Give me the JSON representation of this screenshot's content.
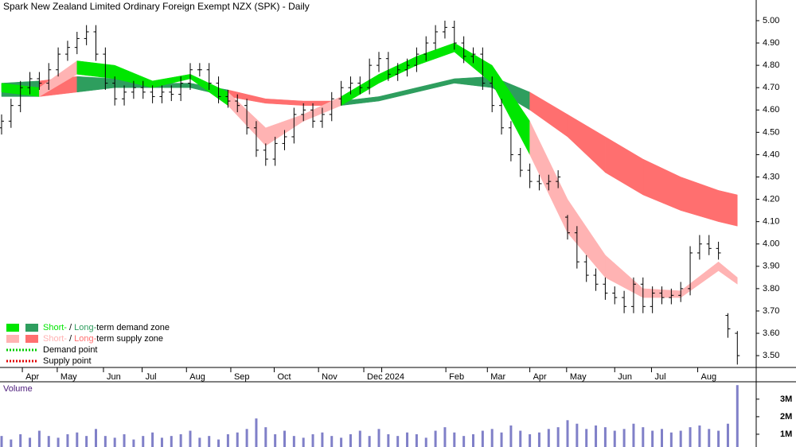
{
  "chart_data": {
    "type": "ohlc",
    "title": "Spark New Zealand Limited Ordinary Foreign Exempt NZX (SPK) - Daily",
    "xlim": [
      0,
      80
    ],
    "xticks": [
      {
        "value": 2.2,
        "label": "Apr"
      },
      {
        "value": 5.9,
        "label": "May"
      },
      {
        "value": 10.8,
        "label": "Jun"
      },
      {
        "value": 14.9,
        "label": "Jul"
      },
      {
        "value": 19.6,
        "label": "Aug"
      },
      {
        "value": 24.3,
        "label": "Sep"
      },
      {
        "value": 28.9,
        "label": "Oct"
      },
      {
        "value": 33.6,
        "label": "Nov"
      },
      {
        "value": 38.4,
        "label": "Dec"
      },
      {
        "value": 40.3,
        "label": "2024"
      },
      {
        "value": 47.1,
        "label": "Feb"
      },
      {
        "value": 51.5,
        "label": "Mar"
      },
      {
        "value": 56,
        "label": "Apr"
      },
      {
        "value": 59.9,
        "label": "May"
      },
      {
        "value": 65,
        "label": "Jun"
      },
      {
        "value": 68.9,
        "label": "Jul"
      },
      {
        "value": 73.8,
        "label": "Aug"
      }
    ],
    "ylim": [
      3.447,
      5.064
    ],
    "yticks": [
      {
        "value": 3.5,
        "label": "3.50"
      },
      {
        "value": 3.6,
        "label": "3.60"
      },
      {
        "value": 3.7,
        "label": "3.70"
      },
      {
        "value": 3.8,
        "label": "3.80"
      },
      {
        "value": 3.9,
        "label": "3.90"
      },
      {
        "value": 4.0,
        "label": "4.00"
      },
      {
        "value": 4.1,
        "label": "4.10"
      },
      {
        "value": 4.2,
        "label": "4.20"
      },
      {
        "value": 4.3,
        "label": "4.30"
      },
      {
        "value": 4.4,
        "label": "4.40"
      },
      {
        "value": 4.5,
        "label": "4.50"
      },
      {
        "value": 4.6,
        "label": "4.60"
      },
      {
        "value": 4.7,
        "label": "4.70"
      },
      {
        "value": 4.8,
        "label": "4.80"
      },
      {
        "value": 4.9,
        "label": "4.90"
      },
      {
        "value": 5.0,
        "label": "5.00"
      }
    ],
    "open": [
      4.52,
      4.55,
      4.62,
      4.7,
      4.74,
      4.72,
      4.78,
      4.85,
      4.88,
      4.92,
      4.95,
      4.85,
      4.72,
      4.65,
      4.68,
      4.7,
      4.68,
      4.66,
      4.68,
      4.67,
      4.72,
      4.78,
      4.78,
      4.72,
      4.66,
      4.64,
      4.62,
      4.52,
      4.42,
      4.38,
      4.45,
      4.48,
      4.58,
      4.6,
      4.55,
      4.58,
      4.65,
      4.7,
      4.72,
      4.7,
      4.8,
      4.83,
      4.76,
      4.78,
      4.8,
      4.85,
      4.9,
      4.95,
      4.97,
      4.9,
      4.84,
      4.85,
      4.72,
      4.62,
      4.52,
      4.4,
      4.33,
      4.28,
      4.27,
      4.28,
      4.12,
      4.05,
      3.92,
      3.86,
      3.82,
      3.78,
      3.76,
      3.72,
      3.82,
      3.72,
      3.78,
      3.76,
      3.77,
      3.8,
      3.96,
      4.0,
      3.98,
      3.68,
      3.6
    ],
    "high": [
      4.58,
      4.65,
      4.73,
      4.77,
      4.77,
      4.81,
      4.88,
      4.91,
      4.95,
      4.98,
      4.98,
      4.88,
      4.75,
      4.71,
      4.73,
      4.73,
      4.71,
      4.71,
      4.71,
      4.75,
      4.81,
      4.81,
      4.81,
      4.75,
      4.69,
      4.67,
      4.65,
      4.55,
      4.45,
      4.48,
      4.51,
      4.61,
      4.63,
      4.63,
      4.61,
      4.68,
      4.73,
      4.75,
      4.75,
      4.83,
      4.86,
      4.86,
      4.81,
      4.83,
      4.88,
      4.93,
      4.98,
      5.0,
      5.0,
      4.93,
      4.88,
      4.88,
      4.75,
      4.65,
      4.55,
      4.43,
      4.36,
      4.31,
      4.31,
      4.33,
      4.13,
      4.08,
      3.95,
      3.89,
      3.85,
      3.81,
      3.79,
      3.85,
      3.85,
      3.81,
      3.81,
      3.8,
      3.83,
      3.99,
      4.04,
      4.04,
      4.01,
      3.69,
      3.61
    ],
    "low": [
      4.49,
      4.52,
      4.59,
      4.67,
      4.69,
      4.69,
      4.75,
      4.82,
      4.85,
      4.89,
      4.82,
      4.69,
      4.62,
      4.62,
      4.65,
      4.65,
      4.63,
      4.63,
      4.64,
      4.64,
      4.69,
      4.75,
      4.69,
      4.63,
      4.61,
      4.59,
      4.49,
      4.39,
      4.35,
      4.35,
      4.42,
      4.45,
      4.55,
      4.52,
      4.52,
      4.55,
      4.62,
      4.67,
      4.67,
      4.67,
      4.77,
      4.73,
      4.73,
      4.75,
      4.77,
      4.82,
      4.87,
      4.92,
      4.87,
      4.81,
      4.81,
      4.69,
      4.59,
      4.49,
      4.37,
      4.3,
      4.25,
      4.24,
      4.24,
      4.25,
      4.02,
      3.89,
      3.83,
      3.79,
      3.75,
      3.73,
      3.69,
      3.69,
      3.69,
      3.69,
      3.73,
      3.73,
      3.74,
      3.77,
      3.93,
      3.95,
      3.93,
      3.58,
      3.46
    ],
    "close": [
      4.55,
      4.62,
      4.7,
      4.74,
      4.72,
      4.78,
      4.85,
      4.88,
      4.92,
      4.95,
      4.85,
      4.72,
      4.65,
      4.68,
      4.7,
      4.68,
      4.66,
      4.68,
      4.67,
      4.72,
      4.78,
      4.78,
      4.72,
      4.66,
      4.64,
      4.62,
      4.52,
      4.42,
      4.38,
      4.45,
      4.48,
      4.58,
      4.6,
      4.55,
      4.58,
      4.65,
      4.7,
      4.72,
      4.7,
      4.8,
      4.83,
      4.76,
      4.78,
      4.8,
      4.85,
      4.9,
      4.95,
      4.97,
      4.9,
      4.84,
      4.85,
      4.72,
      4.62,
      4.52,
      4.4,
      4.33,
      4.28,
      4.27,
      4.28,
      4.3,
      4.05,
      3.92,
      3.86,
      3.82,
      3.78,
      3.76,
      3.72,
      3.82,
      3.72,
      3.78,
      3.76,
      3.77,
      3.8,
      3.96,
      4.0,
      3.98,
      3.96,
      3.62,
      3.5
    ],
    "zones": {
      "x": [
        0,
        4,
        8,
        12,
        16,
        20,
        24,
        28,
        32,
        36,
        40,
        44,
        48,
        52,
        56,
        60,
        64,
        68,
        72,
        76,
        78
      ],
      "short_lower": [
        4.68,
        4.66,
        4.76,
        4.74,
        4.7,
        4.74,
        4.62,
        4.44,
        4.55,
        4.62,
        4.72,
        4.8,
        4.86,
        4.72,
        4.4,
        4.05,
        3.85,
        3.76,
        3.76,
        3.88,
        3.82
      ],
      "short_upper": [
        4.72,
        4.7,
        4.82,
        4.8,
        4.73,
        4.76,
        4.68,
        4.52,
        4.58,
        4.66,
        4.76,
        4.84,
        4.9,
        4.8,
        4.55,
        4.2,
        3.95,
        3.8,
        3.79,
        3.92,
        3.85
      ],
      "long_lower": [
        4.66,
        4.66,
        4.68,
        4.7,
        4.7,
        4.7,
        4.66,
        4.63,
        4.62,
        4.62,
        4.64,
        4.68,
        4.72,
        4.7,
        4.6,
        4.48,
        4.32,
        4.22,
        4.15,
        4.1,
        4.08
      ],
      "long_upper": [
        4.72,
        4.73,
        4.75,
        4.74,
        4.72,
        4.72,
        4.69,
        4.65,
        4.64,
        4.64,
        4.66,
        4.7,
        4.74,
        4.75,
        4.68,
        4.58,
        4.48,
        4.38,
        4.3,
        4.24,
        4.22
      ]
    },
    "colors": {
      "bar": "#000000",
      "short_demand": "#00e600",
      "long_demand": "#2e9e5e",
      "short_supply": "#ffb3b3",
      "long_supply": "#ff6f6f",
      "demand_point": "#00cc00",
      "supply_point": "#e00000",
      "volume": "#8080c8"
    },
    "legend": [
      {
        "short": "Short-",
        "sep": " / ",
        "long": "Long-",
        "rest": "term demand zone"
      },
      {
        "short": "Short-",
        "sep": " / ",
        "long": "Long-",
        "rest": "term supply zone"
      },
      {
        "text": "Demand point"
      },
      {
        "text": "Supply point"
      }
    ],
    "volume": {
      "label": "Volume",
      "ylim": [
        0,
        3.9
      ],
      "yticks": [
        {
          "value": 1,
          "label": "1M"
        },
        {
          "value": 2,
          "label": "2M"
        },
        {
          "value": 3,
          "label": "3M"
        }
      ],
      "values": [
        0.9,
        0.7,
        1.0,
        0.8,
        1.2,
        0.9,
        0.8,
        1.0,
        1.1,
        0.9,
        1.3,
        0.9,
        0.8,
        1.0,
        0.7,
        0.9,
        1.1,
        0.8,
        0.9,
        1.0,
        1.2,
        0.8,
        0.9,
        0.7,
        1.0,
        1.1,
        1.3,
        1.9,
        1.4,
        1.0,
        1.2,
        0.9,
        0.8,
        1.0,
        1.1,
        0.9,
        0.8,
        1.0,
        1.2,
        0.9,
        1.3,
        1.0,
        0.9,
        1.1,
        1.0,
        0.8,
        1.2,
        1.4,
        1.1,
        0.9,
        1.0,
        1.2,
        1.3,
        1.1,
        1.5,
        1.2,
        1.0,
        1.1,
        1.3,
        1.4,
        1.8,
        1.6,
        1.3,
        1.5,
        1.4,
        1.2,
        1.3,
        1.6,
        1.4,
        1.2,
        1.3,
        1.1,
        1.2,
        1.4,
        1.5,
        1.3,
        1.2,
        1.6,
        3.8
      ]
    }
  }
}
